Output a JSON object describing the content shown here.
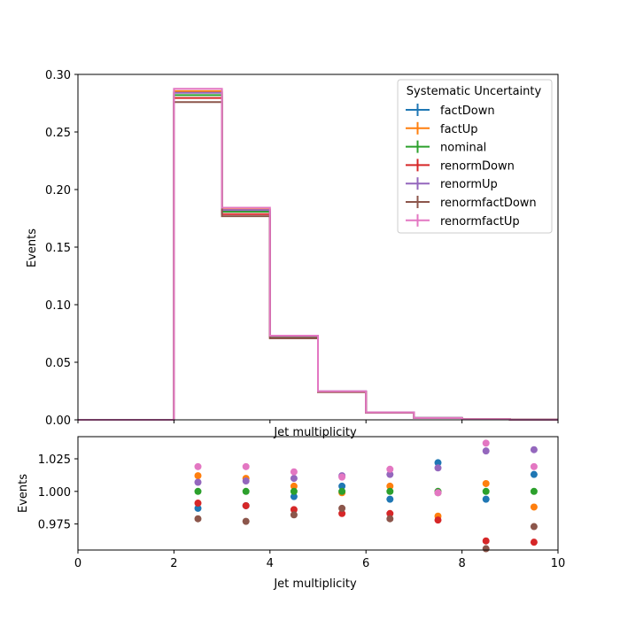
{
  "chart_data": [
    {
      "type": "line",
      "title": "",
      "xlabel": "Jet multiplicity",
      "ylabel": "Events",
      "xlim": [
        0,
        10
      ],
      "ylim": [
        0,
        0.3
      ],
      "xticks": [],
      "yticks": [
        "0.00",
        "0.05",
        "0.10",
        "0.15",
        "0.20",
        "0.25",
        "0.30"
      ],
      "ytick_values": [
        0,
        0.05,
        0.1,
        0.15,
        0.2,
        0.25,
        0.3
      ],
      "bin_edges": [
        0,
        1,
        2,
        3,
        4,
        5,
        6,
        7,
        8,
        9,
        10
      ],
      "legend": {
        "title": "Systematic Uncertainty",
        "placement": "top-right"
      },
      "grid": false,
      "series": [
        {
          "name": "factDown",
          "color": "#1f77b4",
          "values": [
            0,
            0,
            0.2845,
            0.181,
            0.0722,
            0.0245,
            0.0063,
            0.0016,
            0.0005,
            0.0001
          ]
        },
        {
          "name": "factUp",
          "color": "#ff7f0e",
          "values": [
            0,
            0,
            0.2855,
            0.1826,
            0.0724,
            0.0245,
            0.0064,
            0.0015,
            0.0005,
            0.0001
          ]
        },
        {
          "name": "nominal",
          "color": "#2ca02c",
          "values": [
            0,
            0,
            0.282,
            0.1808,
            0.072,
            0.0245,
            0.0063,
            0.0016,
            0.0005,
            0.0001
          ]
        },
        {
          "name": "renormDown",
          "color": "#d62728",
          "values": [
            0,
            0,
            0.2795,
            0.1787,
            0.071,
            0.0241,
            0.0062,
            0.0015,
            0.0005,
            0.0001
          ]
        },
        {
          "name": "renormUp",
          "color": "#9467bd",
          "values": [
            0,
            0,
            0.284,
            0.1822,
            0.0728,
            0.0248,
            0.0064,
            0.0016,
            0.0005,
            0.0001
          ]
        },
        {
          "name": "renormfactDown",
          "color": "#8c564b",
          "values": [
            0,
            0,
            0.276,
            0.1768,
            0.0708,
            0.0241,
            0.0062,
            0.0016,
            0.0005,
            0.0001
          ]
        },
        {
          "name": "renormfactUp",
          "color": "#e377c2",
          "values": [
            0,
            0,
            0.2875,
            0.1842,
            0.0731,
            0.0248,
            0.0064,
            0.0016,
            0.0005,
            0.0001
          ]
        }
      ]
    },
    {
      "type": "scatter",
      "title": "",
      "xlabel": "Jet multiplicity",
      "ylabel": "Events",
      "xlim": [
        0,
        10
      ],
      "ylim": [
        0.955,
        1.042
      ],
      "xticks": [
        "0",
        "2",
        "4",
        "6",
        "8",
        "10"
      ],
      "xtick_values": [
        0,
        2,
        4,
        6,
        8,
        10
      ],
      "yticks": [
        "0.975",
        "1.000",
        "1.025"
      ],
      "ytick_values": [
        0.975,
        1.0,
        1.025
      ],
      "grid": false,
      "x": [
        2.5,
        3.5,
        4.5,
        5.5,
        6.5,
        7.5,
        8.5,
        9.5
      ],
      "series": [
        {
          "name": "factDown",
          "color": "#1f77b4",
          "values": [
            0.987,
            0.989,
            0.996,
            1.004,
            0.994,
            1.022,
            0.994,
            1.013
          ]
        },
        {
          "name": "factUp",
          "color": "#ff7f0e",
          "values": [
            1.012,
            1.01,
            1.004,
            0.999,
            1.004,
            0.981,
            1.006,
            0.988
          ]
        },
        {
          "name": "nominal",
          "color": "#2ca02c",
          "values": [
            1.0,
            1.0,
            1.0,
            1.0,
            1.0,
            1.0,
            1.0,
            1.0
          ]
        },
        {
          "name": "renormDown",
          "color": "#d62728",
          "values": [
            0.991,
            0.989,
            0.986,
            0.983,
            0.983,
            0.978,
            0.962,
            0.961
          ]
        },
        {
          "name": "renormUp",
          "color": "#9467bd",
          "values": [
            1.007,
            1.008,
            1.01,
            1.012,
            1.013,
            1.018,
            1.031,
            1.032
          ]
        },
        {
          "name": "renormfactDown",
          "color": "#8c564b",
          "values": [
            0.979,
            0.977,
            0.982,
            0.987,
            0.979,
            0.999,
            0.956,
            0.973
          ]
        },
        {
          "name": "renormfactUp",
          "color": "#e377c2",
          "values": [
            1.019,
            1.019,
            1.015,
            1.011,
            1.017,
            0.999,
            1.037,
            1.019
          ]
        }
      ]
    }
  ]
}
